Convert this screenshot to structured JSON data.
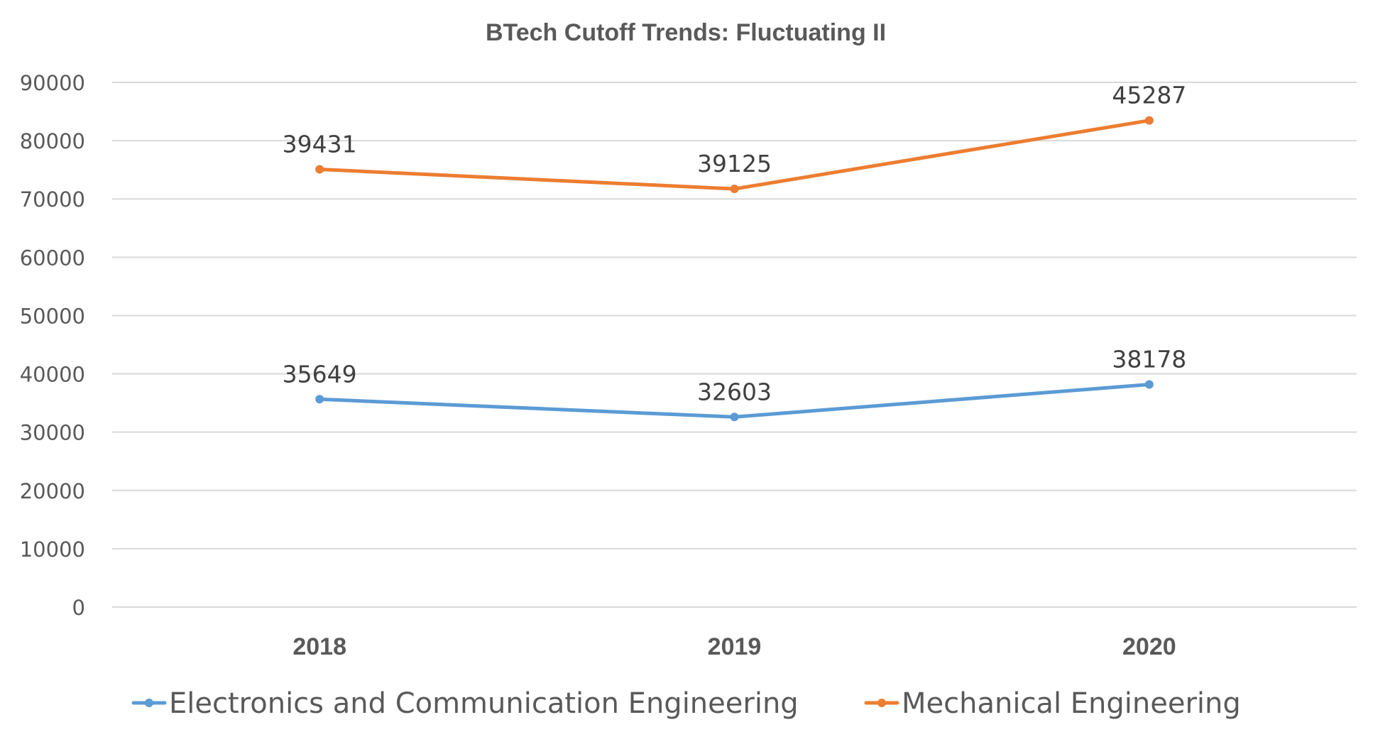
{
  "chart_data": {
    "type": "line",
    "stacked": true,
    "title": "BTech Cutoff Trends: Fluctuating II",
    "xlabel": "",
    "ylabel": "",
    "categories": [
      "2018",
      "2019",
      "2020"
    ],
    "ylim": [
      0,
      90000
    ],
    "yticks": [
      "0",
      "10000",
      "20000",
      "30000",
      "40000",
      "50000",
      "60000",
      "70000",
      "80000",
      "90000"
    ],
    "grid": true,
    "legend_position": "bottom",
    "series": [
      {
        "name": "Electronics and Communication Engineering",
        "color": "#5B9BD5",
        "values": [
          35649,
          32603,
          38178
        ],
        "labels": [
          "35649",
          "32603",
          "38178"
        ]
      },
      {
        "name": "Mechanical Engineering",
        "color": "#ED7D31",
        "values": [
          39431,
          39125,
          45287
        ],
        "labels": [
          "39431",
          "39125",
          "45287"
        ]
      }
    ]
  }
}
